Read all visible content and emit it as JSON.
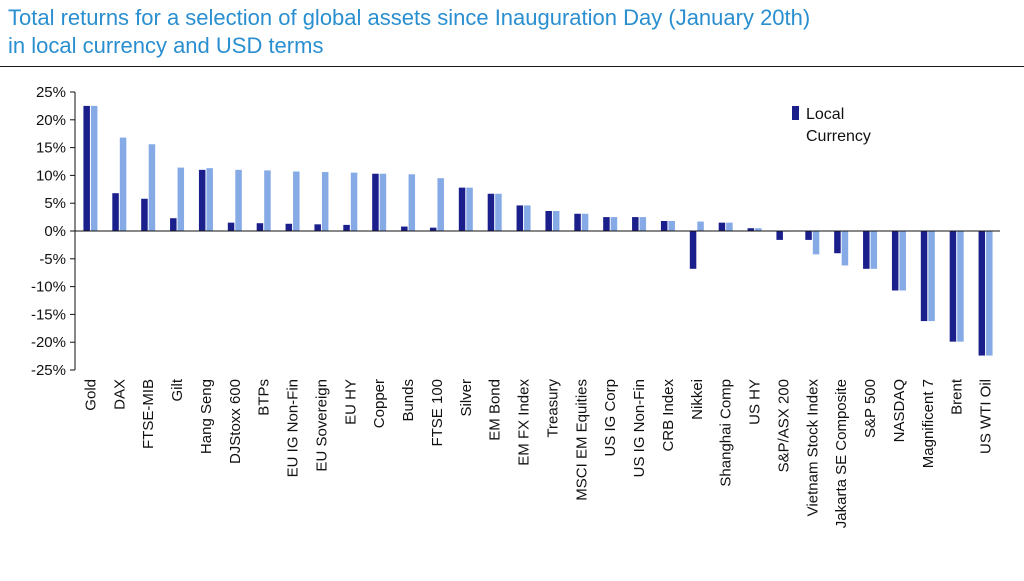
{
  "title_line1": "Total returns for a selection of global assets since Inauguration Day (January 20th)",
  "title_line2": "in local currency and USD terms",
  "chart_data": {
    "type": "bar",
    "title": "Total returns for a selection of global assets since Inauguration Day (January 20th) in local currency and USD terms",
    "ylim": [
      -25,
      25
    ],
    "yticks": [
      25,
      20,
      15,
      10,
      5,
      0,
      -5,
      -10,
      -15,
      -20,
      -25
    ],
    "ytick_format": "percent",
    "grid": false,
    "legend_position": "top-right",
    "categories": [
      "Gold",
      "DAX",
      "FTSE-MIB",
      "Gilt",
      "Hang Seng",
      "DJStoxx 600",
      "BTPs",
      "EU IG Non-Fin",
      "EU Sovereign",
      "EU HY",
      "Copper",
      "Bunds",
      "FTSE 100",
      "Silver",
      "EM Bond",
      "EM FX Index",
      "Treasury",
      "MSCI EM Equities",
      "US IG Corp",
      "US IG Non-Fin",
      "CRB Index",
      "Nikkei",
      "Shanghai Comp",
      "US HY",
      "S&P/ASX 200",
      "Vietnam Stock Index",
      "Jakarta SE Composite",
      "S&P 500",
      "NASDAQ",
      "Magnificent 7",
      "Brent",
      "US WTI Oil"
    ],
    "series": [
      {
        "name": "Local Currency",
        "color": "#1a1f8c",
        "values": [
          22.5,
          6.8,
          5.8,
          2.3,
          11.0,
          1.5,
          1.4,
          1.3,
          1.2,
          1.1,
          10.3,
          0.8,
          0.6,
          7.8,
          6.7,
          4.6,
          3.6,
          3.1,
          2.5,
          2.5,
          1.8,
          -6.8,
          1.5,
          0.5,
          -1.6,
          -1.6,
          -4.0,
          -6.8,
          -10.7,
          -16.2,
          -19.9,
          -22.4
        ]
      },
      {
        "name": "",
        "color": "#85aae6",
        "values": [
          22.5,
          16.8,
          15.6,
          11.4,
          11.3,
          11.0,
          10.9,
          10.7,
          10.6,
          10.5,
          10.3,
          10.2,
          9.5,
          7.8,
          6.7,
          4.6,
          3.6,
          3.1,
          2.5,
          2.5,
          1.8,
          1.7,
          1.5,
          0.5,
          0.0,
          -4.2,
          -6.2,
          -6.8,
          -10.7,
          -16.2,
          -19.9,
          -22.4
        ]
      }
    ]
  }
}
